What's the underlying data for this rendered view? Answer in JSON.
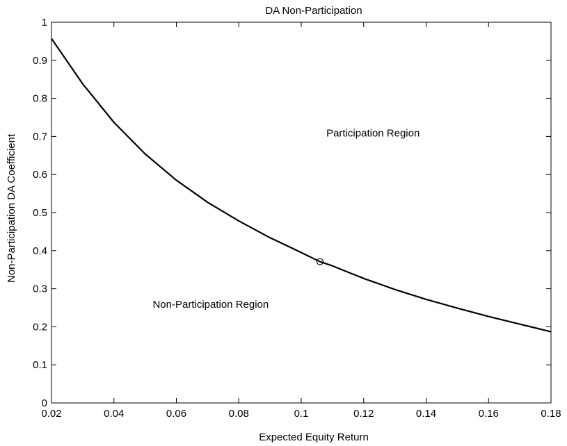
{
  "chart_data": {
    "type": "line",
    "title": "DA Non-Participation",
    "xlabel": "Expected Equity Return",
    "ylabel": "Non-Participation DA Coefficient",
    "xlim": [
      0.02,
      0.18
    ],
    "ylim": [
      0,
      1
    ],
    "x_ticks": [
      0.02,
      0.04,
      0.06,
      0.08,
      0.1,
      0.12,
      0.14,
      0.16,
      0.18
    ],
    "x_tick_labels": [
      "0.02",
      "0.04",
      "0.06",
      "0.08",
      "0.1",
      "0.12",
      "0.14",
      "0.16",
      "0.18"
    ],
    "y_ticks": [
      0,
      0.1,
      0.2,
      0.3,
      0.4,
      0.5,
      0.6,
      0.7,
      0.8,
      0.9,
      1
    ],
    "y_tick_labels": [
      "0",
      "0.1",
      "0.2",
      "0.3",
      "0.4",
      "0.5",
      "0.6",
      "0.7",
      "0.8",
      "0.9",
      "1"
    ],
    "grid": false,
    "legend": "none",
    "series": [
      {
        "x": [
          0.02,
          0.03,
          0.04,
          0.05,
          0.06,
          0.07,
          0.08,
          0.09,
          0.1,
          0.106,
          0.11,
          0.12,
          0.13,
          0.14,
          0.15,
          0.16,
          0.17,
          0.18
        ],
        "values": [
          0.957,
          0.838,
          0.737,
          0.654,
          0.585,
          0.527,
          0.478,
          0.434,
          0.395,
          0.371,
          0.36,
          0.327,
          0.298,
          0.272,
          0.249,
          0.227,
          0.207,
          0.187
        ]
      }
    ],
    "markers": [
      {
        "x": 0.106,
        "y": 0.371,
        "shape": "circle"
      }
    ],
    "annotations": [
      {
        "text": "Participation Region",
        "x": 0.123,
        "y": 0.7
      },
      {
        "text": "Non-Participation Region",
        "x": 0.071,
        "y": 0.25
      }
    ],
    "colors": {
      "line": "#000000",
      "axes": "#000000",
      "background": "#ffffff"
    }
  }
}
